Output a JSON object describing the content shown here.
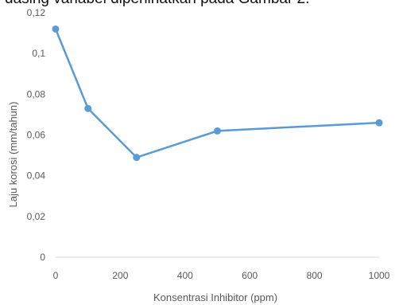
{
  "caption_fragment": "dasing variabel diperlihatkan pada Gambar 2.",
  "chart_data": {
    "type": "line",
    "title": "",
    "xlabel": "Konsentrasi Inhibitor (ppm)",
    "ylabel": "Laju korosi (mm/tahun)",
    "xlim": [
      0,
      1000
    ],
    "ylim": [
      0,
      0.12
    ],
    "x_ticks": [
      "0",
      "200",
      "400",
      "600",
      "800",
      "1000"
    ],
    "y_ticks": [
      "0",
      "0,02",
      "0,04",
      "0,06",
      "0,08",
      "0,1",
      "0,12"
    ],
    "grid": false,
    "series": [
      {
        "x": [
          0,
          100,
          250,
          500,
          1000
        ],
        "y": [
          0.112,
          0.073,
          0.049,
          0.062,
          0.066
        ]
      }
    ],
    "colors": {
      "series": "#5b9bd5",
      "axis": "#d9d9d9",
      "text": "#595959"
    }
  }
}
